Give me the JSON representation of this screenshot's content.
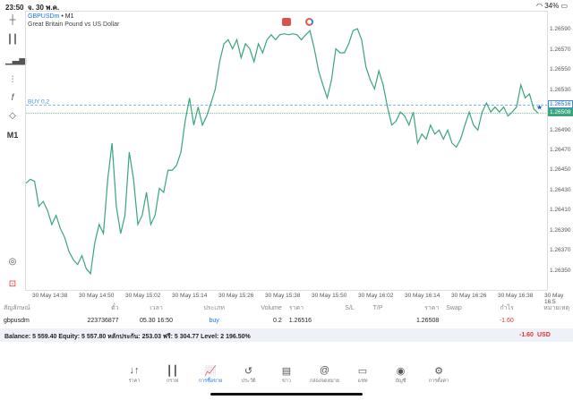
{
  "status": {
    "time": "23:50",
    "date": "จ. 30 พ.ค.",
    "battery": "34%"
  },
  "chart": {
    "symbol": "GBPUSDm",
    "timeframe": "M1",
    "description": "Great Britain Pound vs US Dollar",
    "timeframe_button": "M1",
    "position_label": "BUY 0.2",
    "position_price": "1.26516",
    "bid_price": "1.26508",
    "line_color": "#3aa57a",
    "buy_line_color": "#3a8ee6"
  },
  "chart_data": {
    "type": "line",
    "ylim": [
      1.2633,
      1.26609
    ],
    "y_ticks": [
      "1.26590",
      "1.26570",
      "1.26550",
      "1.26530",
      "1.26490",
      "1.26470",
      "1.26450",
      "1.26430",
      "1.26410",
      "1.26390",
      "1.26370",
      "1.26350"
    ],
    "x_ticks": [
      "30 May 14:38",
      "30 May 14:50",
      "30 May 15:02",
      "30 May 15:14",
      "30 May 15:26",
      "30 May 15:38",
      "30 May 15:50",
      "30 May 16:02",
      "30 May 16:14",
      "30 May 16:26",
      "30 May 16:38",
      "30 May 16:5"
    ],
    "values": [
      1.26438,
      1.26442,
      1.2644,
      1.26415,
      1.2642,
      1.26411,
      1.26397,
      1.26406,
      1.26393,
      1.26384,
      1.2637,
      1.26362,
      1.26357,
      1.26366,
      1.26353,
      1.26348,
      1.26379,
      1.26397,
      1.26388,
      1.26442,
      1.26478,
      1.26415,
      1.26388,
      1.26406,
      1.26469,
      1.26442,
      1.26397,
      1.26406,
      1.26429,
      1.26397,
      1.26406,
      1.26433,
      1.26429,
      1.26451,
      1.26451,
      1.26456,
      1.26469,
      1.265,
      1.26523,
      1.26496,
      1.26514,
      1.26496,
      1.26505,
      1.26518,
      1.26532,
      1.26559,
      1.26577,
      1.26581,
      1.26572,
      1.26581,
      1.26563,
      1.26577,
      1.26572,
      1.26559,
      1.26577,
      1.26568,
      1.26581,
      1.26586,
      1.26581,
      1.26586,
      1.26587,
      1.26586,
      1.26587,
      1.26586,
      1.26581,
      1.26586,
      1.2659,
      1.26572,
      1.2655,
      1.26536,
      1.26523,
      1.26541,
      1.26572,
      1.26568,
      1.26568,
      1.26577,
      1.2659,
      1.26592,
      1.26581,
      1.26554,
      1.26541,
      1.26532,
      1.2655,
      1.26536,
      1.26514,
      1.26496,
      1.265,
      1.26509,
      1.26505,
      1.26496,
      1.26509,
      1.26478,
      1.26487,
      1.26482,
      1.26496,
      1.26487,
      1.26491,
      1.26482,
      1.26491,
      1.26478,
      1.26474,
      1.26482,
      1.26496,
      1.26509,
      1.26496,
      1.26491,
      1.26509,
      1.26518,
      1.26509,
      1.26514,
      1.26509,
      1.26514,
      1.26505,
      1.26509,
      1.26514,
      1.26536,
      1.26523,
      1.26527,
      1.26512,
      1.26508
    ]
  },
  "table": {
    "headers": [
      "สัญลักษณ์",
      "ตั๋ว",
      "เวลา",
      "ประเภท",
      "Volume",
      "ราคา",
      "S/L",
      "T/P",
      "ราคา",
      "Swap",
      "กำไร",
      "หมายเหตุ"
    ],
    "rows": [
      [
        "gbpusdm",
        "223736877",
        "05.30 16:50",
        "buy",
        "0.2",
        "1.26516",
        "",
        "",
        "1.26508",
        "",
        "-1.60",
        ""
      ]
    ]
  },
  "balance": {
    "text": "Balance: 5 559.40 Equity: 5 557.80 หลักประกัน: 253.03 ฟรี: 5 304.77 Level: 2 196.50%",
    "profit": "-1.60",
    "currency": "USD"
  },
  "nav": [
    {
      "label": "ราคา",
      "icon": "↓↑"
    },
    {
      "label": "กราฟ",
      "icon": "┃┃"
    },
    {
      "label": "การซื้อขาย",
      "icon": "📈",
      "active": true
    },
    {
      "label": "ประวัติ",
      "icon": "↺"
    },
    {
      "label": "ข่าว",
      "icon": "▤"
    },
    {
      "label": "กล่องจดหมาย",
      "icon": "@"
    },
    {
      "label": "แชท",
      "icon": "▭"
    },
    {
      "label": "บัญชี",
      "icon": "◉"
    },
    {
      "label": "การตั้งค่า",
      "icon": "⚙"
    }
  ]
}
